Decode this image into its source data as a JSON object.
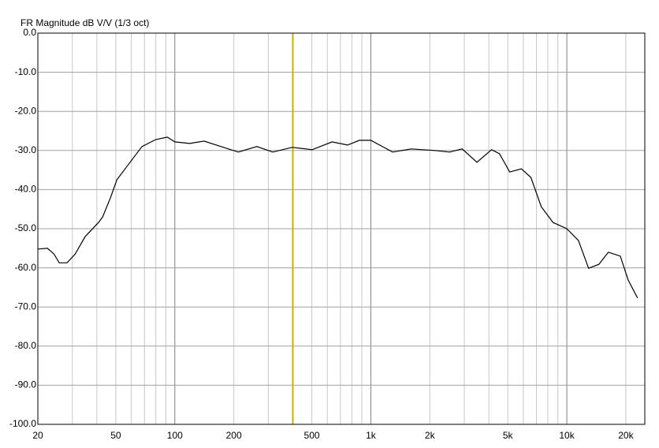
{
  "chart_data": {
    "type": "line",
    "title": "FR Magnitude dB V/V (1/3 oct)",
    "xscale": "log",
    "xlim": [
      20,
      25000
    ],
    "ylim": [
      -100,
      0
    ],
    "xticks": [
      20,
      50,
      100,
      200,
      500,
      {
        "value": 1000,
        "label": "1k"
      },
      {
        "value": 2000,
        "label": "2k"
      },
      {
        "value": 5000,
        "label": "5k"
      },
      {
        "value": 10000,
        "label": "10k"
      },
      {
        "value": 20000,
        "label": "20k"
      }
    ],
    "xminor": [
      30,
      40,
      60,
      70,
      80,
      90,
      300,
      400,
      600,
      700,
      800,
      900,
      3000,
      4000,
      6000,
      7000,
      8000,
      9000
    ],
    "yticks": [
      {
        "value": 0,
        "label": "0.0"
      },
      {
        "value": -10,
        "label": "-10.0"
      },
      {
        "value": -20,
        "label": "-20.0"
      },
      {
        "value": -30,
        "label": "-30.0"
      },
      {
        "value": -40,
        "label": "-40.0"
      },
      {
        "value": -50,
        "label": "-50.0"
      },
      {
        "value": -60,
        "label": "-60.0"
      },
      {
        "value": -70,
        "label": "-70.0"
      },
      {
        "value": -80,
        "label": "-80.0"
      },
      {
        "value": -90,
        "label": "-90.0"
      },
      {
        "value": -100,
        "label": "-100.0"
      }
    ],
    "grid": true,
    "marker": {
      "value": 400,
      "color": "#c8b400"
    },
    "series": [
      {
        "color": "#000000",
        "x": [
          20,
          22.4,
          24.2,
          25.7,
          28.2,
          31,
          34.9,
          40.8,
          42.8,
          47,
          50.6,
          59.3,
          68,
          80,
          91.6,
          100,
          119,
          141,
          172,
          211,
          262,
          316,
          397,
          502,
          634,
          761,
          874,
          1000,
          1292,
          1607,
          2124,
          2520,
          2924,
          3478,
          4130,
          4530,
          5110,
          5870,
          6560,
          7410,
          8510,
          10000,
          11460,
          12920,
          14580,
          16290,
          18740,
          20560,
          22960
        ],
        "values": [
          -55.2,
          -55.0,
          -56.5,
          -58.7,
          -58.7,
          -56.5,
          -52,
          -48.4,
          -47,
          -42,
          -37.5,
          -32.9,
          -29,
          -27.2,
          -26.6,
          -27.8,
          -28.2,
          -27.6,
          -29,
          -30.4,
          -29,
          -30.4,
          -29.2,
          -29.8,
          -27.8,
          -28.6,
          -27.4,
          -27.4,
          -30.4,
          -29.6,
          -30,
          -30.4,
          -29.6,
          -33,
          -29.8,
          -30.8,
          -35.5,
          -34.7,
          -36.9,
          -44.4,
          -48.4,
          -50,
          -53,
          -60.1,
          -59.1,
          -56,
          -57,
          -63.1,
          -67.7
        ]
      }
    ]
  }
}
